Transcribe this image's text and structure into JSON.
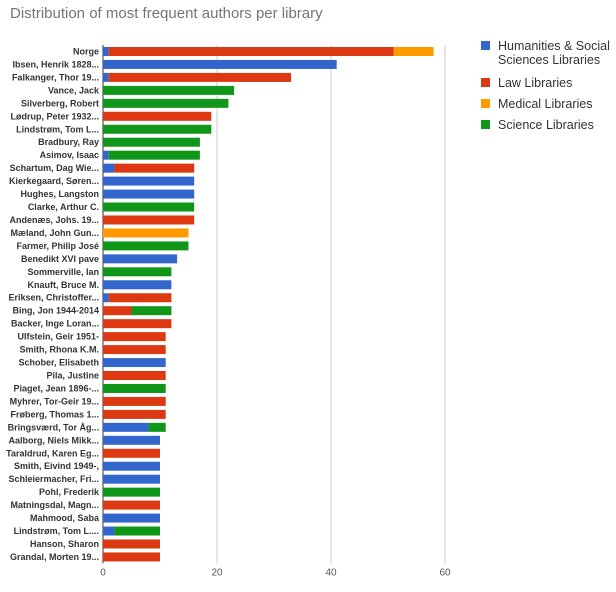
{
  "chart_data": {
    "type": "bar",
    "orientation": "horizontal",
    "stacked": true,
    "title": "Distribution of most frequent authors per library",
    "xlim": [
      0,
      60
    ],
    "x_ticks": [
      "0",
      "20",
      "40",
      "60"
    ],
    "grid": true,
    "legend_position": "right",
    "categories": [
      "Norge",
      "Ibsen, Henrik 1828...",
      "Falkanger, Thor 19...",
      "Vance, Jack",
      "Silverberg, Robert",
      "Lødrup, Peter 1932...",
      "Lindstrøm, Tom L...",
      "Bradbury, Ray",
      "Asimov, Isaac",
      "Schartum, Dag Wie...",
      "Kierkegaard, Søren...",
      "Hughes, Langston",
      "Clarke, Arthur C.",
      "Andenæs, Johs. 19...",
      "Mæland, John Gun...",
      "Farmer, Philip José",
      "Benedikt XVI pave",
      "Sommerville, Ian",
      "Knauft, Bruce M.",
      "Eriksen, Christoffer...",
      "Bing, Jon 1944-2014",
      "Backer, Inge Loran...",
      "Ulfstein, Geir 1951-",
      "Smith, Rhona K.M.",
      "Schober, Elisabeth",
      "Pila, Justine",
      "Piaget, Jean 1896-...",
      "Myhrer, Tor-Geir 19...",
      "Frøberg, Thomas 1...",
      "Bringsværd, Tor Åg...",
      "Aalborg, Niels Mikk...",
      "Taraldrud, Karen Eg...",
      "Smith, Eivind 1949-,",
      "Schleiermacher, Fri...",
      "Pohl, Frederik",
      "Matningsdal, Magn...",
      "Mahmood, Saba",
      "Lindstrøm, Tom L....",
      "Hanson, Sharon",
      "Grandal, Morten 19..."
    ],
    "series": [
      {
        "name": "Humanities & Social Sciences Libraries",
        "color": "#3366cc",
        "values": [
          1,
          41,
          1,
          0,
          0,
          0,
          0,
          0,
          1,
          2,
          16,
          16,
          0,
          0,
          0,
          0,
          13,
          0,
          12,
          1,
          0,
          0,
          0,
          0,
          11,
          0,
          0,
          0,
          0,
          8,
          10,
          0,
          10,
          10,
          0,
          0,
          10,
          2,
          0,
          0
        ]
      },
      {
        "name": "Law Libraries",
        "color": "#dc3912",
        "values": [
          50,
          0,
          32,
          0,
          0,
          19,
          0,
          0,
          0,
          14,
          0,
          0,
          0,
          16,
          0,
          0,
          0,
          0,
          0,
          11,
          5,
          12,
          11,
          11,
          0,
          11,
          0,
          11,
          11,
          0,
          0,
          10,
          0,
          0,
          0,
          10,
          0,
          0,
          10,
          10
        ]
      },
      {
        "name": "Medical Libraries",
        "color": "#ff9900",
        "values": [
          7,
          0,
          0,
          0,
          0,
          0,
          0,
          0,
          0,
          0,
          0,
          0,
          0,
          0,
          15,
          0,
          0,
          0,
          0,
          0,
          0,
          0,
          0,
          0,
          0,
          0,
          0,
          0,
          0,
          0,
          0,
          0,
          0,
          0,
          0,
          0,
          0,
          0,
          0,
          0
        ]
      },
      {
        "name": "Science Libraries",
        "color": "#109618",
        "values": [
          0,
          0,
          0,
          23,
          22,
          0,
          19,
          17,
          16,
          0,
          0,
          0,
          16,
          0,
          0,
          15,
          0,
          12,
          0,
          0,
          7,
          0,
          0,
          0,
          0,
          0,
          11,
          0,
          0,
          3,
          0,
          0,
          0,
          0,
          10,
          0,
          0,
          8,
          0,
          0
        ]
      }
    ]
  }
}
